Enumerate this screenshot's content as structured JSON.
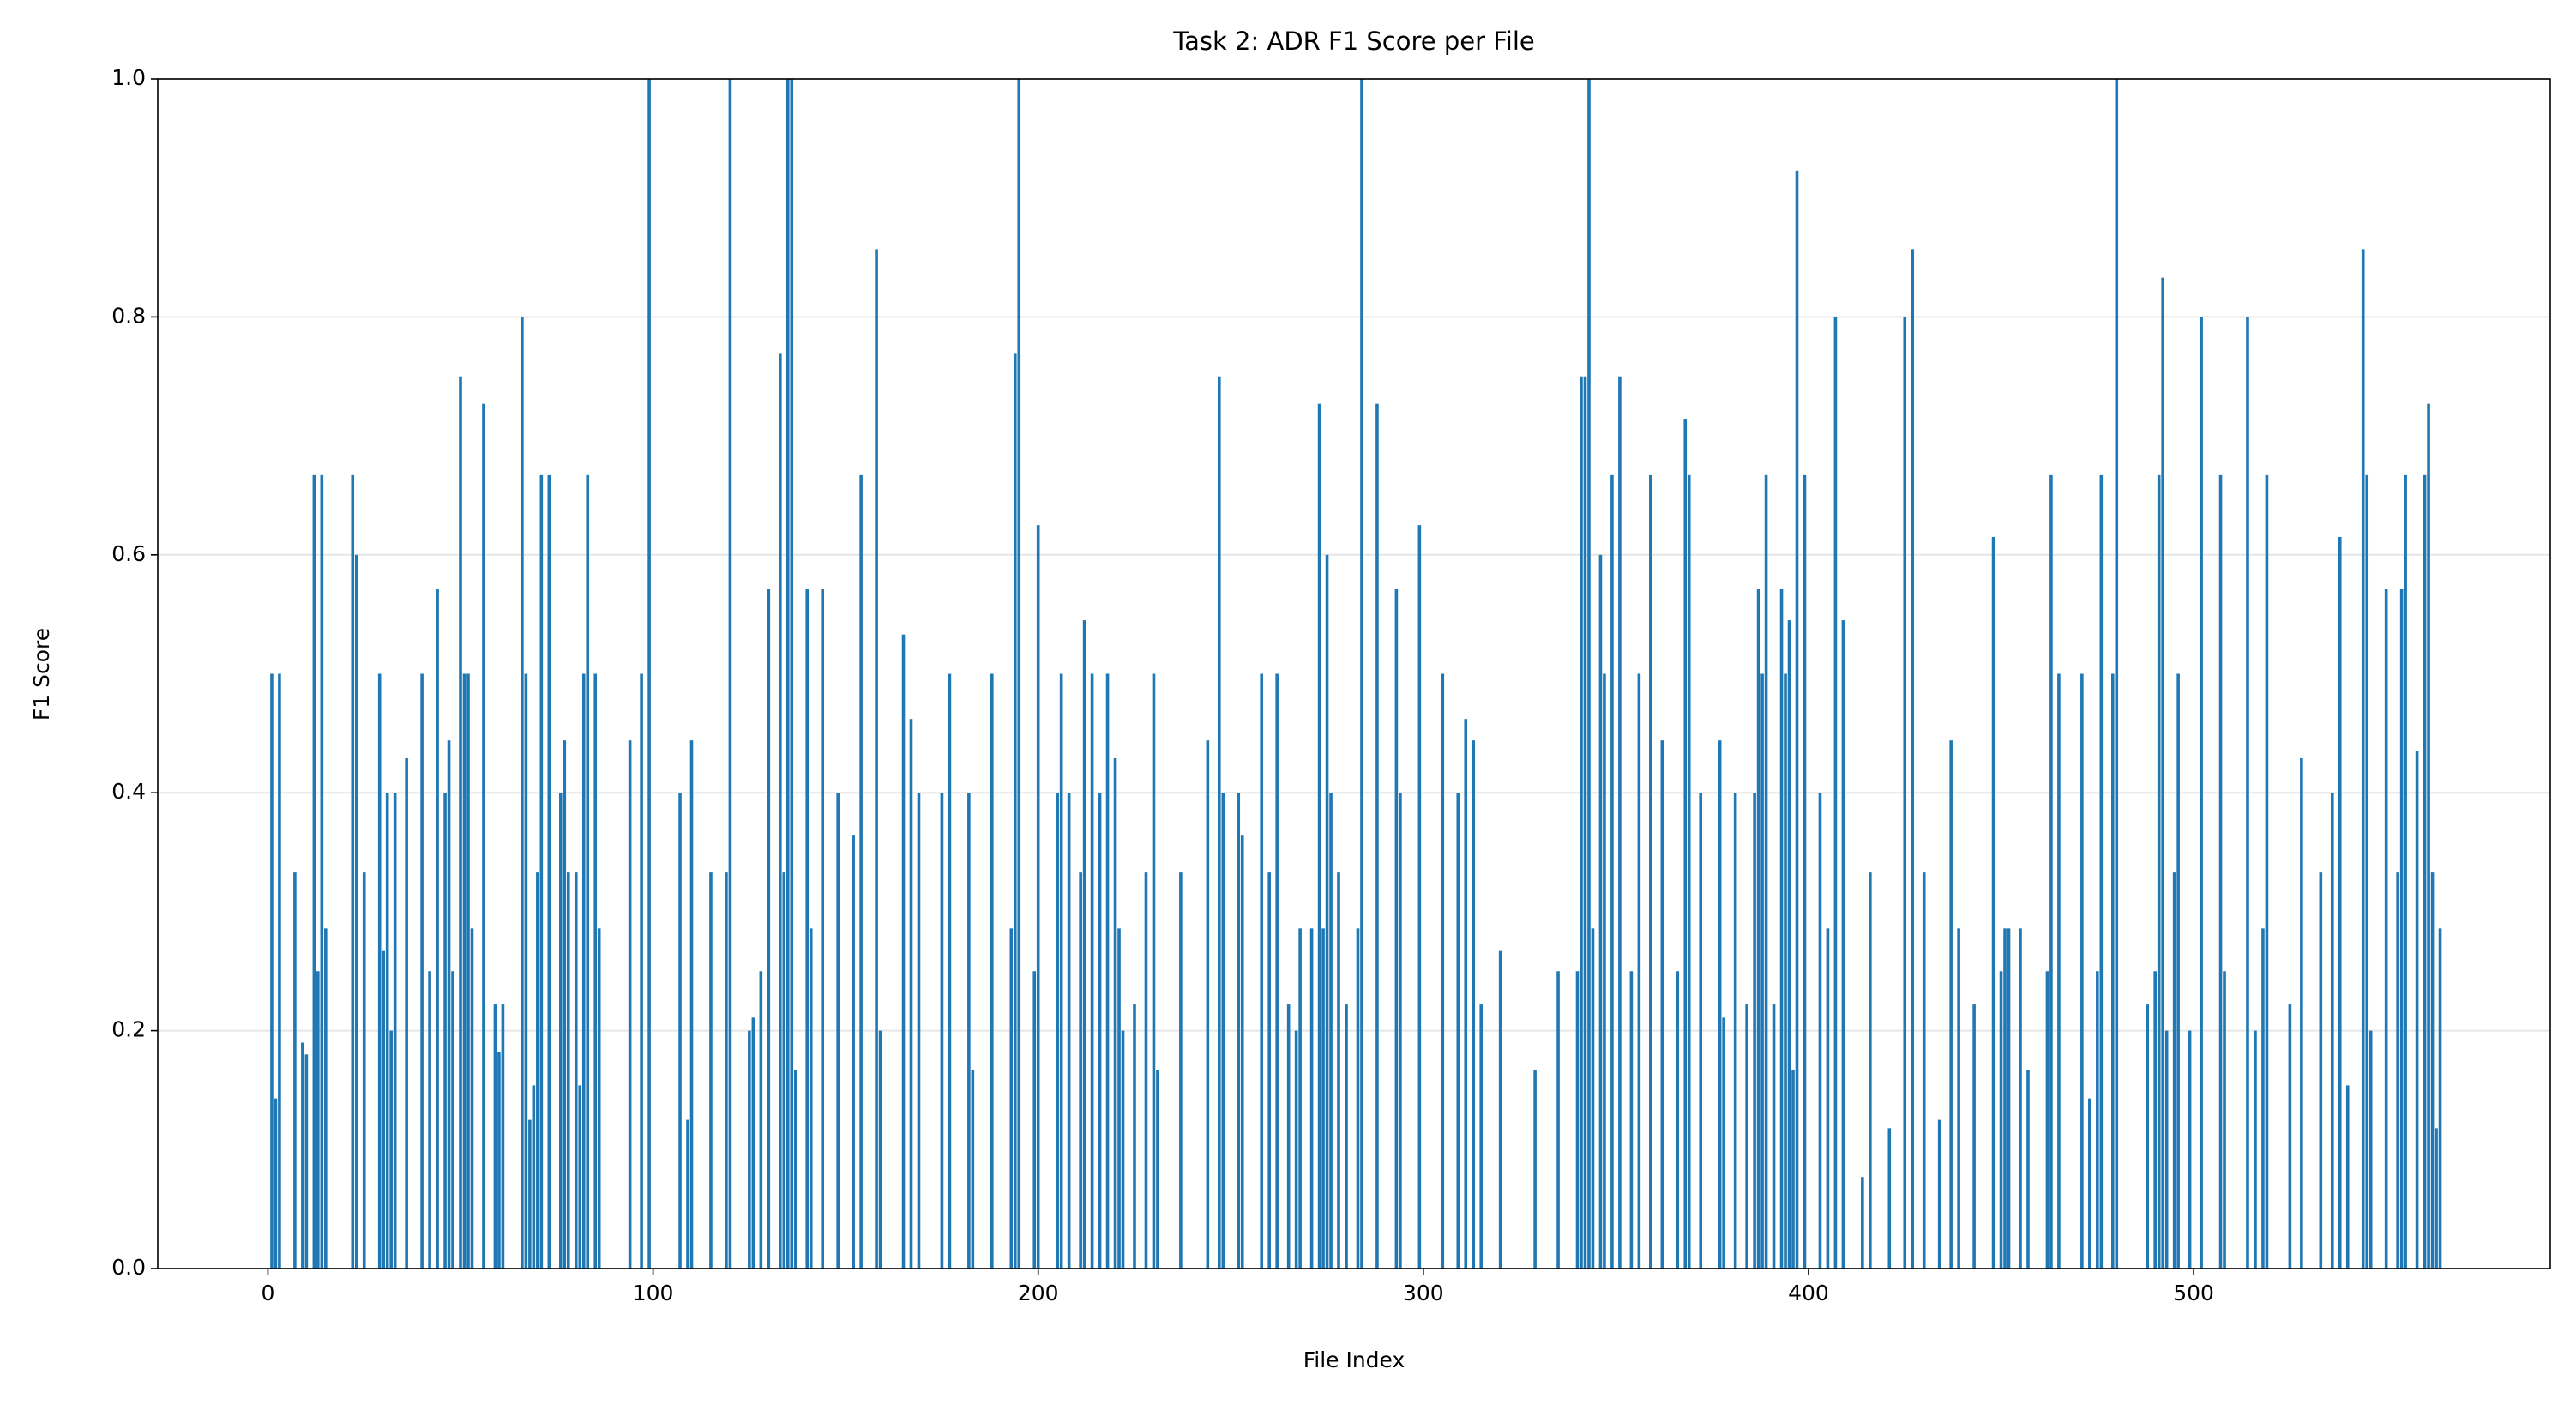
{
  "chart_data": {
    "type": "bar",
    "title": "Task 2: ADR F1 Score per File",
    "xlabel": "File Index",
    "ylabel": "F1 Score",
    "color": "#1f77b4",
    "grid": true,
    "xlim": [
      -28.6,
      592.6
    ],
    "ylim": [
      0,
      1
    ],
    "xticks": [
      0,
      100,
      200,
      300,
      400,
      500
    ],
    "yticks": [
      {
        "value": 0,
        "label": "0.0"
      },
      {
        "value": 0.2,
        "label": "0.2"
      },
      {
        "value": 0.4,
        "label": "0.4"
      },
      {
        "value": 0.6,
        "label": "0.6"
      },
      {
        "value": 0.8,
        "label": "0.8"
      },
      {
        "value": 1,
        "label": "1.0"
      }
    ],
    "x": [
      1,
      2,
      3,
      7,
      9,
      10,
      12,
      13,
      14,
      15,
      22,
      23,
      25,
      29,
      30,
      31,
      32,
      33,
      36,
      40,
      42,
      44,
      46,
      47,
      48,
      50,
      51,
      52,
      53,
      56,
      59,
      60,
      61,
      66,
      67,
      68,
      69,
      70,
      71,
      73,
      76,
      77,
      78,
      80,
      81,
      82,
      83,
      85,
      86,
      94,
      97,
      99,
      107,
      109,
      110,
      115,
      119,
      120,
      125,
      126,
      128,
      130,
      133,
      134,
      135,
      136,
      137,
      140,
      141,
      144,
      148,
      152,
      154,
      158,
      159,
      165,
      167,
      169,
      175,
      177,
      182,
      183,
      188,
      193,
      194,
      195,
      199,
      200,
      205,
      206,
      208,
      211,
      212,
      214,
      216,
      218,
      220,
      221,
      222,
      225,
      228,
      230,
      231,
      237,
      244,
      247,
      248,
      252,
      253,
      258,
      260,
      262,
      265,
      267,
      268,
      271,
      273,
      274,
      275,
      276,
      278,
      280,
      283,
      284,
      288,
      293,
      294,
      299,
      305,
      309,
      311,
      313,
      315,
      320,
      329,
      335,
      340,
      341,
      342,
      343,
      344,
      346,
      347,
      349,
      351,
      354,
      356,
      359,
      362,
      366,
      368,
      369,
      372,
      377,
      378,
      381,
      384,
      386,
      387,
      388,
      389,
      391,
      393,
      394,
      395,
      396,
      397,
      399,
      403,
      405,
      407,
      409,
      414,
      416,
      421,
      425,
      427,
      430,
      434,
      437,
      439,
      443,
      448,
      450,
      451,
      452,
      455,
      457,
      462,
      463,
      465,
      471,
      473,
      475,
      476,
      479,
      480,
      488,
      490,
      491,
      492,
      493,
      495,
      496,
      499,
      502,
      507,
      508,
      514,
      516,
      518,
      519,
      525,
      528,
      533,
      536,
      538,
      540,
      544,
      545,
      546,
      550,
      553,
      554,
      555,
      558,
      560,
      561,
      562,
      563,
      564
    ],
    "values": [
      0.5,
      0.143,
      0.5,
      0.333,
      0.19,
      0.18,
      0.667,
      0.25,
      0.667,
      0.286,
      0.667,
      0.6,
      0.333,
      0.5,
      0.267,
      0.4,
      0.2,
      0.4,
      0.429,
      0.5,
      0.25,
      0.571,
      0.4,
      0.444,
      0.25,
      0.75,
      0.5,
      0.5,
      0.286,
      0.727,
      0.222,
      0.182,
      0.222,
      0.8,
      0.5,
      0.125,
      0.154,
      0.333,
      0.667,
      0.667,
      0.4,
      0.444,
      0.333,
      0.333,
      0.154,
      0.5,
      0.667,
      0.5,
      0.286,
      0.444,
      0.5,
      1.0,
      0.4,
      0.125,
      0.444,
      0.333,
      0.333,
      1.0,
      0.2,
      0.211,
      0.25,
      0.571,
      0.769,
      0.333,
      1.0,
      1.0,
      0.167,
      0.571,
      0.286,
      0.571,
      0.4,
      0.364,
      0.667,
      0.857,
      0.2,
      0.533,
      0.462,
      0.4,
      0.4,
      0.5,
      0.4,
      0.167,
      0.5,
      0.286,
      0.769,
      1.0,
      0.25,
      0.625,
      0.4,
      0.5,
      0.4,
      0.333,
      0.545,
      0.5,
      0.4,
      0.5,
      0.429,
      0.286,
      0.2,
      0.222,
      0.333,
      0.5,
      0.167,
      0.333,
      0.444,
      0.75,
      0.4,
      0.4,
      0.364,
      0.5,
      0.333,
      0.5,
      0.222,
      0.2,
      0.286,
      0.286,
      0.727,
      0.286,
      0.6,
      0.4,
      0.333,
      0.222,
      0.286,
      1.0,
      0.727,
      0.571,
      0.4,
      0.625,
      0.5,
      0.4,
      0.462,
      0.444,
      0.222,
      0.267,
      0.167,
      0.25,
      0.25,
      0.75,
      0.75,
      1.0,
      0.286,
      0.6,
      0.5,
      0.667,
      0.75,
      0.25,
      0.5,
      0.667,
      0.444,
      0.25,
      0.714,
      0.667,
      0.4,
      0.444,
      0.211,
      0.4,
      0.222,
      0.4,
      0.571,
      0.5,
      0.667,
      0.222,
      0.571,
      0.5,
      0.545,
      0.167,
      0.923,
      0.667,
      0.4,
      0.286,
      0.8,
      0.545,
      0.077,
      0.333,
      0.118,
      0.8,
      0.857,
      0.333,
      0.125,
      0.444,
      0.286,
      0.222,
      0.615,
      0.25,
      0.286,
      0.286,
      0.286,
      0.167,
      0.25,
      0.667,
      0.5,
      0.5,
      0.143,
      0.25,
      0.667,
      0.5,
      1.0,
      0.222,
      0.25,
      0.667,
      0.833,
      0.2,
      0.333,
      0.5,
      0.2,
      0.8,
      0.667,
      0.25,
      0.8,
      0.2,
      0.286,
      0.667,
      0.222,
      0.429,
      0.333,
      0.4,
      0.615,
      0.154,
      0.857,
      0.667,
      0.2,
      0.571,
      0.333,
      0.571,
      0.667,
      0.435,
      0.667,
      0.727,
      0.333,
      0.118,
      0.286
    ]
  }
}
